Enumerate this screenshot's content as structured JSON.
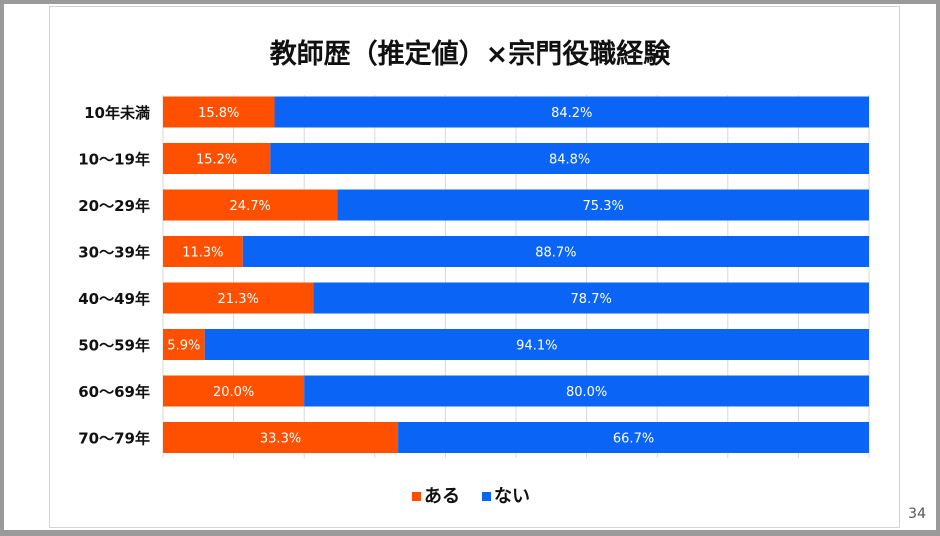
{
  "page_number": "34",
  "chart_data": {
    "type": "bar",
    "orientation": "horizontal",
    "stacked": true,
    "title": "教師歴（推定値）×宗門役職経験",
    "categories": [
      "10年未満",
      "10～19年",
      "20～29年",
      "30～39年",
      "40～49年",
      "50～59年",
      "60～69年",
      "70～79年"
    ],
    "series": [
      {
        "name": "ある",
        "color": "#ff5000",
        "values": [
          15.8,
          15.2,
          24.7,
          11.3,
          21.3,
          5.9,
          20.0,
          33.3
        ],
        "labels": [
          "15.8%",
          "15.2%",
          "24.7%",
          "11.3%",
          "21.3%",
          "5.9%",
          "20.0%",
          "33.3%"
        ]
      },
      {
        "name": "ない",
        "color": "#0a64f5",
        "values": [
          84.2,
          84.8,
          75.3,
          88.7,
          78.7,
          94.1,
          80.0,
          66.7
        ],
        "labels": [
          "84.2%",
          "84.8%",
          "75.3%",
          "88.7%",
          "78.7%",
          "94.1%",
          "80.0%",
          "66.7%"
        ]
      }
    ],
    "xlim": [
      0,
      100
    ],
    "grid": true,
    "legend": "bottom-center"
  }
}
